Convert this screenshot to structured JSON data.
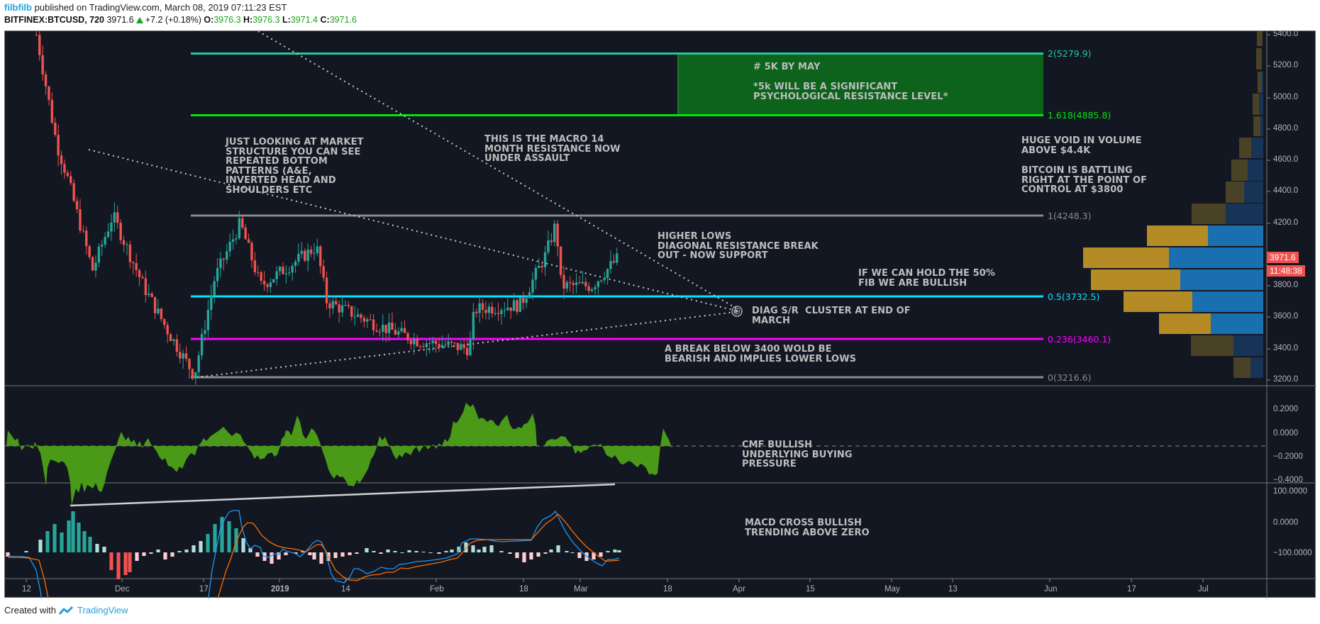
{
  "header": {
    "author": "filbfilb",
    "published_text": "published on TradingView.com, March 08, 2019 07:11:23 EST",
    "symbol": "BITFINEX:BTCUSD, 720",
    "last_price": "3971.6",
    "change": "+7.2 (+0.18%)",
    "open_label": "O:",
    "open": "3976.3",
    "high_label": "H:",
    "high": "3976.3",
    "low_label": "L:",
    "low": "3971.4",
    "close_label": "C:",
    "close": "3971.6"
  },
  "footer": {
    "created_with": "Created with",
    "brand": "TradingView"
  },
  "price_axis": {
    "ticks": [
      "5400.0",
      "5200.0",
      "5000.0",
      "4800.0",
      "4600.0",
      "4400.0",
      "4200.0",
      "3800.0",
      "3600.0",
      "3400.0",
      "3200.0"
    ],
    "current_price_tag": "3971.6",
    "countdown_tag": "11:48:38"
  },
  "cmf_axis": {
    "ticks": [
      "0.2000",
      "0.0000",
      "−0.2000",
      "−0.4000"
    ]
  },
  "macd_axis": {
    "ticks": [
      "100.0000",
      "0.0000",
      "−100.0000"
    ]
  },
  "time_axis": {
    "ticks": [
      "12",
      "Dec",
      "17",
      "2019",
      "14",
      "Feb",
      "18",
      "Mar",
      "18",
      "Apr",
      "15",
      "May",
      "13",
      "Jun",
      "17",
      "Jul"
    ]
  },
  "fib_levels": [
    {
      "label": "2(5279.9)",
      "color": "#26c6a0"
    },
    {
      "label": "1.618(4885.8)",
      "color": "#00e60a"
    },
    {
      "label": "1(4248.3)",
      "color": "#8a8a8a"
    },
    {
      "label": "0.5(3732.5)",
      "color": "#00e5ff"
    },
    {
      "label": "0.236(3460.1)",
      "color": "#ff00ff"
    },
    {
      "label": "0(3216.6)",
      "color": "#8a8a8a"
    }
  ],
  "annotations": {
    "market_structure": "JUST LOOKING AT MARKET\nSTRUCTURE YOU CAN SEE\nREPEATED BOTTOM\nPATTERNS (A&E,\nINVERTED HEAD AND\nSHOULDERS ETC",
    "macro_resistance": "THIS IS THE MACRO 14\nMONTH RESISTANCE NOW\nUNDER ASSAULT",
    "five_k_title": "# 5K BY MAY",
    "five_k_body": "*5k WILL BE A SIGNIFICANT\nPSYCHOLOGICAL RESISTANCE LEVEL*",
    "higher_lows": "HIGHER LOWS\nDIAGONAL RESISTANCE BREAK\nOUT - NOW SUPPORT",
    "hold_fib": "IF WE CAN HOLD THE 50%\nFIB WE ARE BULLISH",
    "diag_cluster": "DIAG S/R  CLUSTER AT END OF\nMARCH",
    "break_below": "A BREAK BELOW 3400 WOLD BE\nBEARISH AND IMPLIES LOWER LOWS",
    "volume_void": "HUGE VOID IN VOLUME\nABOVE $4.4K",
    "poc": "BITCOIN IS BATTLING\nRIGHT AT THE POINT OF\nCONTROL AT $3800",
    "cmf": "CMF BULLISH\nUNDERLYING BUYING\nPRESSURE",
    "macd": "MACD CROSS BULLISH\nTRENDING ABOVE ZERO"
  },
  "colors": {
    "background": "#131722",
    "candle_up": "#26a69a",
    "candle_down": "#ef5350",
    "cmf_fill": "#4a9a17",
    "macd_line": "#2196f3",
    "signal_line": "#ff6d00",
    "vp_up": "#b58b25",
    "vp_down": "#1a6fb0",
    "vp_up_dim": "#4a4226",
    "vp_down_dim": "#173456",
    "target_box": "#0d631c"
  },
  "chart_data": [
    {
      "type": "candlestick",
      "title": "BITFINEX:BTCUSD, 720",
      "timeframe": "720 (12h)",
      "x_range": [
        "2018-11-08",
        "2019-07-31"
      ],
      "ylim": [
        3150,
        5450
      ],
      "ohlc_last": {
        "open": 3976.3,
        "high": 3976.3,
        "low": 3971.4,
        "close": 3971.6
      },
      "approx_path": [
        {
          "date": "2018-11-14",
          "price": 5400
        },
        {
          "date": "2018-11-18",
          "price": 4700
        },
        {
          "date": "2018-11-20",
          "price": 4500
        },
        {
          "date": "2018-11-25",
          "price": 3900
        },
        {
          "date": "2018-11-29",
          "price": 4250
        },
        {
          "date": "2018-12-05",
          "price": 3800
        },
        {
          "date": "2018-12-10",
          "price": 3500
        },
        {
          "date": "2018-12-15",
          "price": 3230
        },
        {
          "date": "2018-12-19",
          "price": 3850
        },
        {
          "date": "2018-12-24",
          "price": 4200
        },
        {
          "date": "2018-12-28",
          "price": 3800
        },
        {
          "date": "2019-01-08",
          "price": 4050
        },
        {
          "date": "2019-01-10",
          "price": 3700
        },
        {
          "date": "2019-01-20",
          "price": 3550
        },
        {
          "date": "2019-01-28",
          "price": 3450
        },
        {
          "date": "2019-02-07",
          "price": 3400
        },
        {
          "date": "2019-02-08",
          "price": 3650
        },
        {
          "date": "2019-02-17",
          "price": 3680
        },
        {
          "date": "2019-02-22",
          "price": 4000
        },
        {
          "date": "2019-02-24",
          "price": 4200
        },
        {
          "date": "2019-02-25",
          "price": 3800
        },
        {
          "date": "2019-03-03",
          "price": 3800
        },
        {
          "date": "2019-03-08",
          "price": 3971.6
        }
      ],
      "fibonacci": [
        {
          "level": 2,
          "price": 5279.9
        },
        {
          "level": 1.618,
          "price": 4885.8
        },
        {
          "level": 1,
          "price": 4248.3
        },
        {
          "level": 0.5,
          "price": 3732.5
        },
        {
          "level": 0.236,
          "price": 3460.1
        },
        {
          "level": 0,
          "price": 3216.6
        }
      ],
      "target_zone": {
        "from": 4885.8,
        "to": 5279.9,
        "label": "# 5K BY MAY"
      },
      "volume_profile_rows": [
        {
          "price_from": 5300,
          "price_to": 5400,
          "up": 2,
          "down": 0
        },
        {
          "price_from": 5200,
          "price_to": 5300,
          "up": 4,
          "down": 0
        },
        {
          "price_from": 5050,
          "price_to": 5200,
          "up": 3,
          "down": 1
        },
        {
          "price_from": 4900,
          "price_to": 5050,
          "up": 4,
          "down": 3
        },
        {
          "price_from": 4750,
          "price_to": 4900,
          "up": 4,
          "down": 2
        },
        {
          "price_from": 4600,
          "price_to": 4750,
          "up": 8,
          "down": 7
        },
        {
          "price_from": 4450,
          "price_to": 4600,
          "up": 11,
          "down": 10
        },
        {
          "price_from": 4300,
          "price_to": 4450,
          "up": 12,
          "down": 13
        },
        {
          "price_from": 4150,
          "price_to": 4300,
          "up": 23,
          "down": 25
        },
        {
          "price_from": 4000,
          "price_to": 4150,
          "up": 40,
          "down": 39
        },
        {
          "price_from": 3850,
          "price_to": 4000,
          "up": 58,
          "down": 63
        },
        {
          "price_from": 3700,
          "price_to": 3850,
          "up": 60,
          "down": 56
        },
        {
          "price_from": 3550,
          "price_to": 3700,
          "up": 46,
          "down": 48
        },
        {
          "price_from": 3400,
          "price_to": 3550,
          "up": 35,
          "down": 36
        },
        {
          "price_from": 3250,
          "price_to": 3400,
          "up": 28,
          "down": 22
        },
        {
          "price_from": 3150,
          "price_to": 3250,
          "up": 12,
          "down": 10
        }
      ]
    },
    {
      "type": "area",
      "title": "Chaikin Money Flow (CMF)",
      "ylim": [
        -0.4,
        0.3
      ],
      "ticks": [
        0.2,
        0.0,
        -0.2,
        -0.4
      ],
      "annotation": "rising trendline under CMF lows"
    },
    {
      "type": "line",
      "title": "MACD",
      "ylim": [
        -150,
        120
      ],
      "ticks": [
        100,
        0,
        -100
      ],
      "series": [
        {
          "name": "MACD",
          "color": "#2196f3"
        },
        {
          "name": "Signal",
          "color": "#ff6d00"
        },
        {
          "name": "Histogram",
          "color": "#26a69a / #ef5350"
        }
      ]
    }
  ]
}
